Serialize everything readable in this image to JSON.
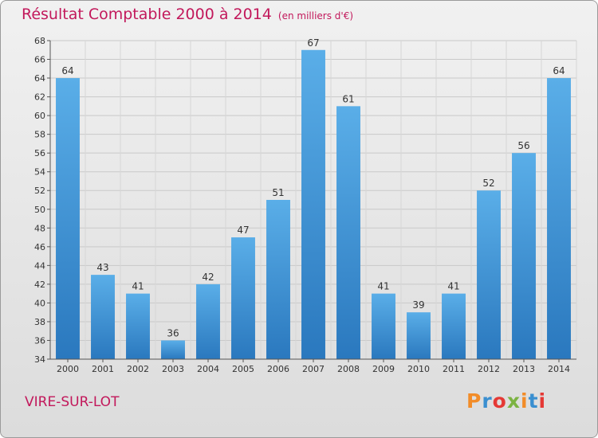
{
  "header": {
    "title": "Résultat Comptable 2000 à 2014",
    "subtitle": "(en milliers d'€)"
  },
  "footer": {
    "commune": "VIRE-SUR-LOT",
    "logo_letters": [
      "P",
      "r",
      "o",
      "x",
      "i",
      "t",
      "i"
    ],
    "logo_colors": [
      "#f28c28",
      "#3a8fd0",
      "#e53935",
      "#7cb342",
      "#f28c28",
      "#3a8fd0",
      "#e53935"
    ]
  },
  "chart_data": {
    "type": "bar",
    "title": "Résultat Comptable 2000 à 2014",
    "xlabel": "",
    "ylabel": "",
    "categories": [
      "2000",
      "2001",
      "2002",
      "2003",
      "2004",
      "2005",
      "2006",
      "2007",
      "2008",
      "2009",
      "2010",
      "2011",
      "2012",
      "2013",
      "2014"
    ],
    "values": [
      64,
      43,
      41,
      36,
      42,
      47,
      51,
      67,
      61,
      41,
      39,
      41,
      52,
      56,
      64
    ],
    "ylim": [
      34,
      68
    ],
    "yticks": [
      34,
      36,
      38,
      40,
      42,
      44,
      46,
      48,
      50,
      52,
      54,
      56,
      58,
      60,
      62,
      64,
      66,
      68
    ],
    "grid": true,
    "bar_color": "#3a8fd6"
  }
}
